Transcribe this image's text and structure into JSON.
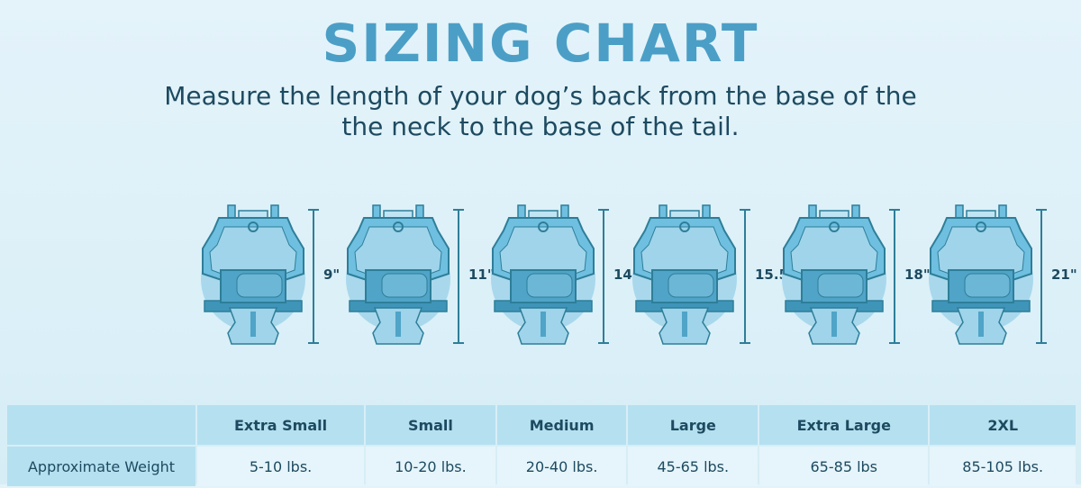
{
  "title": "SIZING CHART",
  "subtitle": [
    "Measure the length of your dog’s back from the base of the",
    "the neck to the base of the tail."
  ],
  "colors": {
    "title": "#4b9fc6",
    "text": "#1d4a60",
    "harness": "#6fbfe0",
    "harness_dark": "#2e7e99",
    "circle": "#a9d8ec"
  },
  "figure_icon": "dog-harness-icon",
  "measurements": [
    "9\"",
    "11\"",
    "14\"",
    "15.5\"",
    "18\"",
    "21\""
  ],
  "table": {
    "headers": [
      "",
      "Extra Small",
      "Small",
      "Medium",
      "Large",
      "Extra Large",
      "2XL"
    ],
    "row_label": "Approximate Weight",
    "weights": [
      "5-10 lbs.",
      "10-20 lbs.",
      "20-40 lbs.",
      "45-65 lbs.",
      "65-85 lbs",
      "85-105 lbs."
    ]
  }
}
